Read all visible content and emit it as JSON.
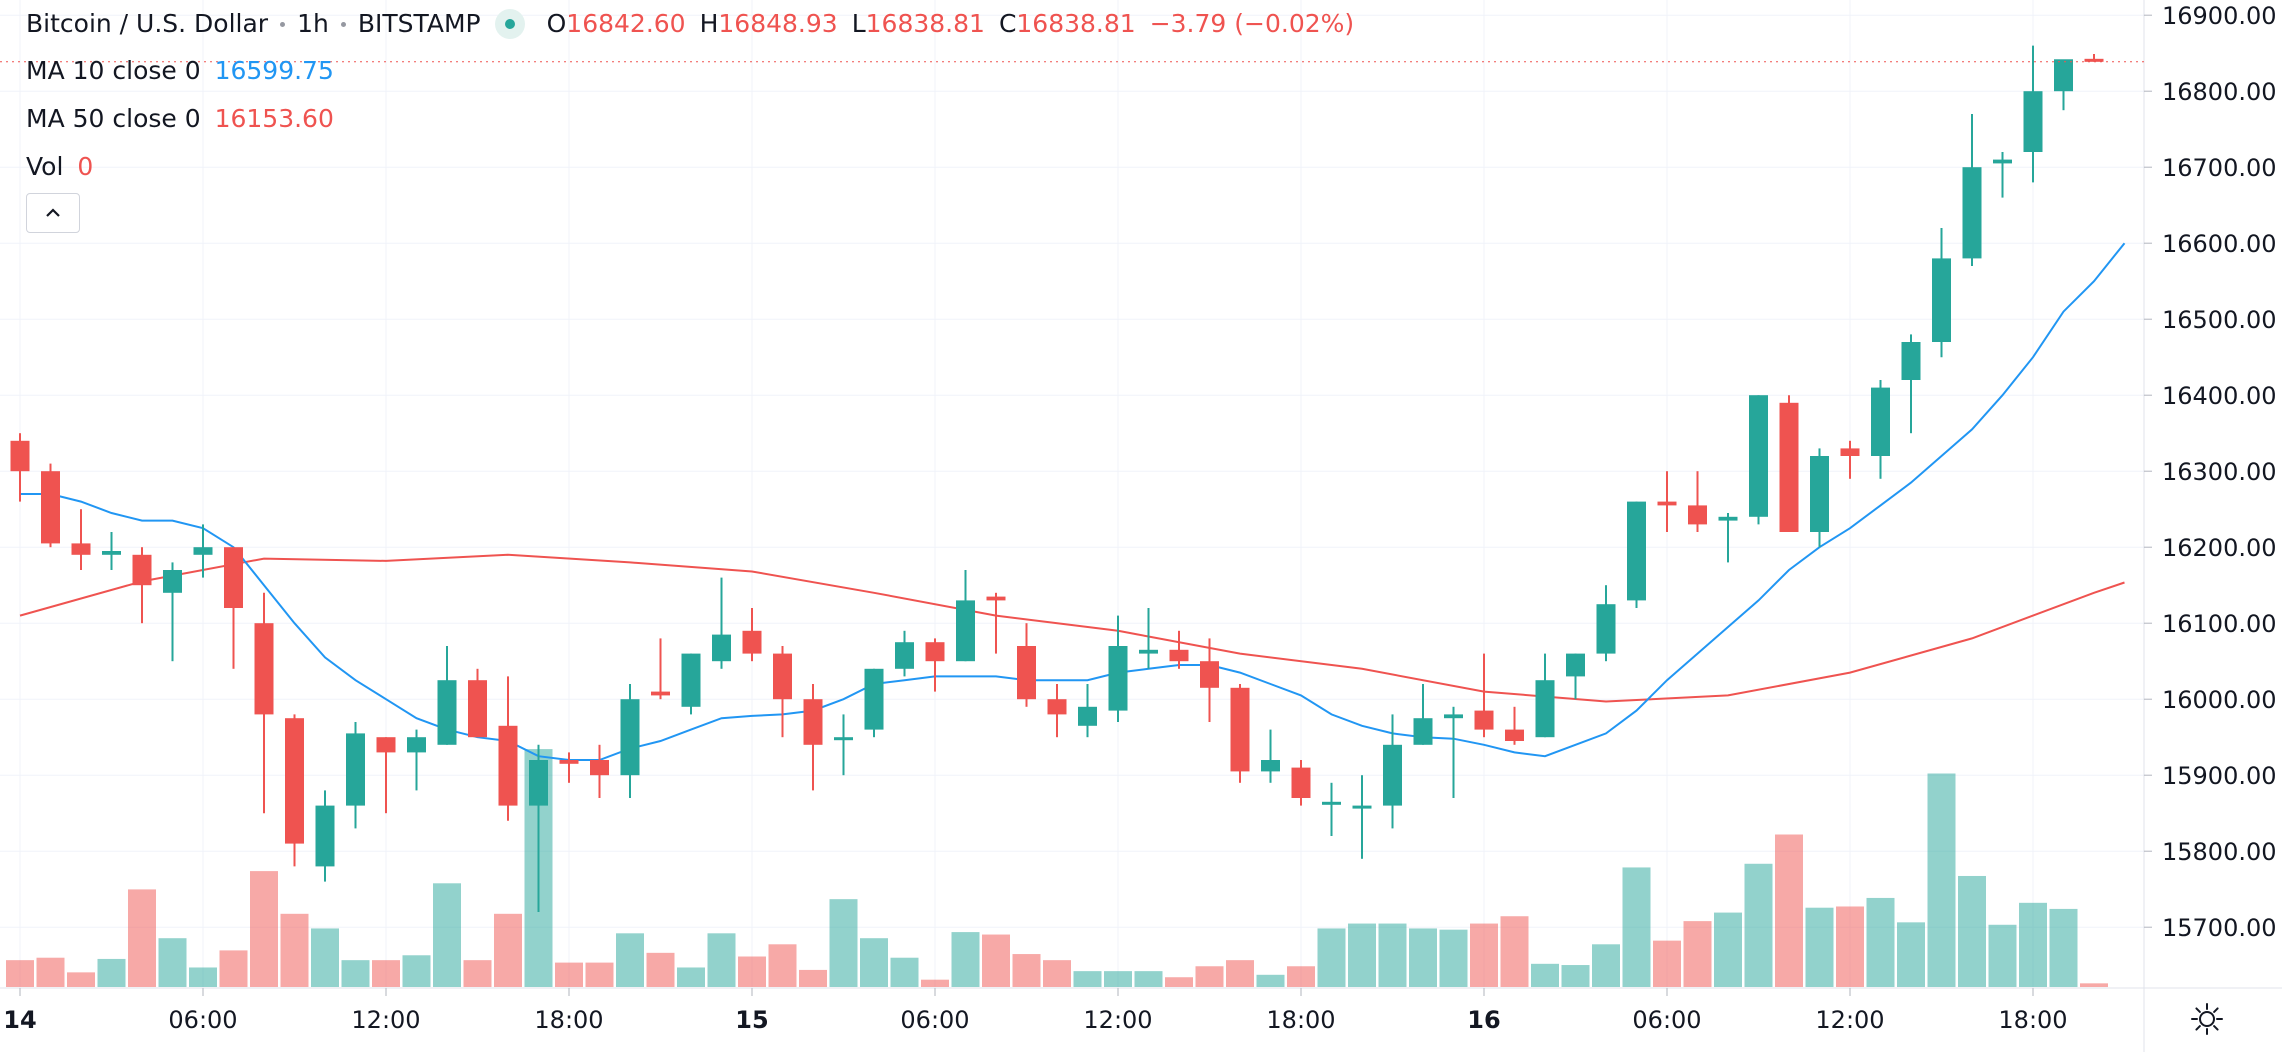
{
  "header": {
    "symbol": "Bitcoin / U.S. Dollar",
    "interval": "1h",
    "exchange": "BITSTAMP",
    "ohlc": {
      "o_key": "O",
      "o": "16842.60",
      "h_key": "H",
      "h": "16848.93",
      "l_key": "L",
      "l": "16838.81",
      "c_key": "C",
      "c": "16838.81",
      "change": "−3.79 (−0.02%)"
    }
  },
  "indicators": {
    "ma10": {
      "label": "MA 10 close 0",
      "value": "16599.75"
    },
    "ma50": {
      "label": "MA 50 close 0",
      "value": "16153.60"
    },
    "vol": {
      "label": "Vol",
      "value": "0"
    }
  },
  "colors": {
    "up": "#26a69a",
    "down": "#ef5350",
    "ma10": "#2196f3",
    "ma50": "#ef5350"
  },
  "chart_data": {
    "type": "candlestick",
    "y_axis": {
      "ticks": [
        "16900.00",
        "16800.00",
        "16700.00",
        "16600.00",
        "16500.00",
        "16400.00",
        "16300.00",
        "16200.00",
        "16100.00",
        "16000.00",
        "15900.00",
        "15800.00",
        "15700.00"
      ],
      "range": [
        15620,
        16920
      ]
    },
    "x_axis": {
      "ticks": [
        {
          "label": "14",
          "index": 0,
          "bold": true
        },
        {
          "label": "06:00",
          "index": 6
        },
        {
          "label": "12:00",
          "index": 12
        },
        {
          "label": "18:00",
          "index": 18
        },
        {
          "label": "15",
          "index": 24,
          "bold": true
        },
        {
          "label": "06:00",
          "index": 30
        },
        {
          "label": "12:00",
          "index": 36
        },
        {
          "label": "18:00",
          "index": 42
        },
        {
          "label": "16",
          "index": 48,
          "bold": true
        },
        {
          "label": "06:00",
          "index": 54
        },
        {
          "label": "12:00",
          "index": 60
        },
        {
          "label": "18:00",
          "index": 66
        }
      ]
    },
    "current_price": 16838.81,
    "candles": [
      [
        16340,
        16350,
        16260,
        16300
      ],
      [
        16300,
        16310,
        16200,
        16205
      ],
      [
        16205,
        16250,
        16170,
        16190
      ],
      [
        16190,
        16220,
        16170,
        16195
      ],
      [
        16190,
        16200,
        16100,
        16150
      ],
      [
        16140,
        16180,
        16050,
        16170
      ],
      [
        16190,
        16230,
        16160,
        16200
      ],
      [
        16200,
        16200,
        16040,
        16120
      ],
      [
        16100,
        16140,
        15850,
        15980
      ],
      [
        15975,
        15980,
        15780,
        15810
      ],
      [
        15780,
        15880,
        15760,
        15860
      ],
      [
        15860,
        15970,
        15830,
        15955
      ],
      [
        15950,
        15950,
        15850,
        15930
      ],
      [
        15930,
        15960,
        15880,
        15950
      ],
      [
        15940,
        16070,
        15940,
        16025
      ],
      [
        16025,
        16040,
        15950,
        15950
      ],
      [
        15965,
        16030,
        15840,
        15860
      ],
      [
        15860,
        15940,
        15720,
        15920
      ],
      [
        15920,
        15930,
        15890,
        15915
      ],
      [
        15920,
        15940,
        15870,
        15900
      ],
      [
        15900,
        16020,
        15870,
        16000
      ],
      [
        16010,
        16080,
        16000,
        16005
      ],
      [
        15990,
        16060,
        15980,
        16060
      ],
      [
        16050,
        16160,
        16040,
        16085
      ],
      [
        16090,
        16120,
        16050,
        16060
      ],
      [
        16060,
        16070,
        15950,
        16000
      ],
      [
        16000,
        16020,
        15880,
        15940
      ],
      [
        15950,
        15980,
        15900,
        15950
      ],
      [
        15960,
        16040,
        15950,
        16040
      ],
      [
        16040,
        16090,
        16030,
        16075
      ],
      [
        16075,
        16080,
        16010,
        16050
      ],
      [
        16050,
        16170,
        16050,
        16130
      ],
      [
        16135,
        16140,
        16060,
        16130
      ],
      [
        16070,
        16100,
        15990,
        16000
      ],
      [
        16000,
        16020,
        15950,
        15980
      ],
      [
        15965,
        16020,
        15950,
        15990
      ],
      [
        15985,
        16110,
        15970,
        16070
      ],
      [
        16060,
        16120,
        16040,
        16065
      ],
      [
        16065,
        16090,
        16040,
        16050
      ],
      [
        16050,
        16080,
        15970,
        16015
      ],
      [
        16015,
        16020,
        15890,
        15905
      ],
      [
        15905,
        15960,
        15890,
        15920
      ],
      [
        15910,
        15920,
        15860,
        15870
      ],
      [
        15865,
        15890,
        15820,
        15865
      ],
      [
        15860,
        15900,
        15790,
        15860
      ],
      [
        15860,
        15980,
        15830,
        15940
      ],
      [
        15940,
        16020,
        15940,
        15975
      ],
      [
        15975,
        15990,
        15870,
        15980
      ],
      [
        15985,
        16060,
        15950,
        15960
      ],
      [
        15960,
        15990,
        15940,
        15945
      ],
      [
        15950,
        16060,
        15950,
        16025
      ],
      [
        16030,
        16060,
        16000,
        16060
      ],
      [
        16060,
        16150,
        16050,
        16125
      ],
      [
        16130,
        16260,
        16120,
        16260
      ],
      [
        16260,
        16300,
        16220,
        16255
      ],
      [
        16255,
        16300,
        16220,
        16230
      ],
      [
        16235,
        16245,
        16180,
        16240
      ],
      [
        16240,
        16400,
        16230,
        16400
      ],
      [
        16390,
        16400,
        16220,
        16220
      ],
      [
        16220,
        16330,
        16200,
        16320
      ],
      [
        16330,
        16340,
        16290,
        16320
      ],
      [
        16320,
        16420,
        16290,
        16410
      ],
      [
        16420,
        16480,
        16350,
        16470
      ],
      [
        16470,
        16620,
        16450,
        16580
      ],
      [
        16580,
        16770,
        16570,
        16700
      ],
      [
        16705,
        16720,
        16660,
        16710
      ],
      [
        16720,
        16860,
        16680,
        16800
      ],
      [
        16800,
        16840,
        16775,
        16842
      ],
      [
        16842.6,
        16848.93,
        16838.81,
        16838.81
      ]
    ],
    "volume": [
      22,
      24,
      12,
      23,
      80,
      40,
      16,
      30,
      95,
      60,
      48,
      22,
      22,
      26,
      85,
      22,
      60,
      195,
      20,
      20,
      44,
      28,
      16,
      44,
      25,
      35,
      14,
      72,
      40,
      24,
      6,
      45,
      43,
      27,
      22,
      13,
      13,
      13,
      8,
      17,
      22,
      10,
      17,
      48,
      52,
      52,
      48,
      47,
      52,
      58,
      19,
      18,
      35,
      98,
      38,
      54,
      61,
      101,
      125,
      65,
      66,
      73,
      53,
      175,
      91,
      51,
      69,
      64,
      3
    ],
    "volume_range": [
      0,
      200
    ],
    "ma10": [
      [
        0,
        16270
      ],
      [
        1,
        16270
      ],
      [
        2,
        16260
      ],
      [
        3,
        16245
      ],
      [
        4,
        16235
      ],
      [
        5,
        16235
      ],
      [
        6,
        16225
      ],
      [
        7,
        16200
      ],
      [
        8,
        16150
      ],
      [
        9,
        16100
      ],
      [
        10,
        16055
      ],
      [
        11,
        16025
      ],
      [
        12,
        16000
      ],
      [
        13,
        15975
      ],
      [
        14,
        15960
      ],
      [
        15,
        15950
      ],
      [
        16,
        15945
      ],
      [
        17,
        15925
      ],
      [
        18,
        15920
      ],
      [
        19,
        15920
      ],
      [
        20,
        15935
      ],
      [
        21,
        15945
      ],
      [
        22,
        15960
      ],
      [
        23,
        15975
      ],
      [
        24,
        15978
      ],
      [
        25,
        15980
      ],
      [
        26,
        15985
      ],
      [
        27,
        16000
      ],
      [
        28,
        16020
      ],
      [
        29,
        16025
      ],
      [
        30,
        16030
      ],
      [
        31,
        16030
      ],
      [
        32,
        16030
      ],
      [
        33,
        16025
      ],
      [
        34,
        16025
      ],
      [
        35,
        16025
      ],
      [
        36,
        16035
      ],
      [
        37,
        16040
      ],
      [
        38,
        16045
      ],
      [
        39,
        16045
      ],
      [
        40,
        16035
      ],
      [
        41,
        16020
      ],
      [
        42,
        16005
      ],
      [
        43,
        15980
      ],
      [
        44,
        15965
      ],
      [
        45,
        15955
      ],
      [
        46,
        15950
      ],
      [
        47,
        15948
      ],
      [
        48,
        15940
      ],
      [
        49,
        15930
      ],
      [
        50,
        15925
      ],
      [
        51,
        15940
      ],
      [
        52,
        15955
      ],
      [
        53,
        15985
      ],
      [
        54,
        16025
      ],
      [
        55,
        16060
      ],
      [
        56,
        16095
      ],
      [
        57,
        16130
      ],
      [
        58,
        16170
      ],
      [
        59,
        16200
      ],
      [
        60,
        16225
      ],
      [
        61,
        16255
      ],
      [
        62,
        16285
      ],
      [
        63,
        16320
      ],
      [
        64,
        16355
      ],
      [
        65,
        16400
      ],
      [
        66,
        16450
      ],
      [
        67,
        16510
      ],
      [
        68,
        16550
      ],
      [
        69,
        16600
      ]
    ],
    "ma50": [
      [
        0,
        16110
      ],
      [
        4,
        16155
      ],
      [
        8,
        16185
      ],
      [
        12,
        16182
      ],
      [
        16,
        16190
      ],
      [
        20,
        16180
      ],
      [
        24,
        16168
      ],
      [
        28,
        16140
      ],
      [
        32,
        16110
      ],
      [
        36,
        16090
      ],
      [
        40,
        16060
      ],
      [
        44,
        16040
      ],
      [
        48,
        16010
      ],
      [
        52,
        15997
      ],
      [
        56,
        16005
      ],
      [
        60,
        16035
      ],
      [
        64,
        16080
      ],
      [
        68,
        16140
      ],
      [
        69,
        16153.6
      ]
    ]
  }
}
